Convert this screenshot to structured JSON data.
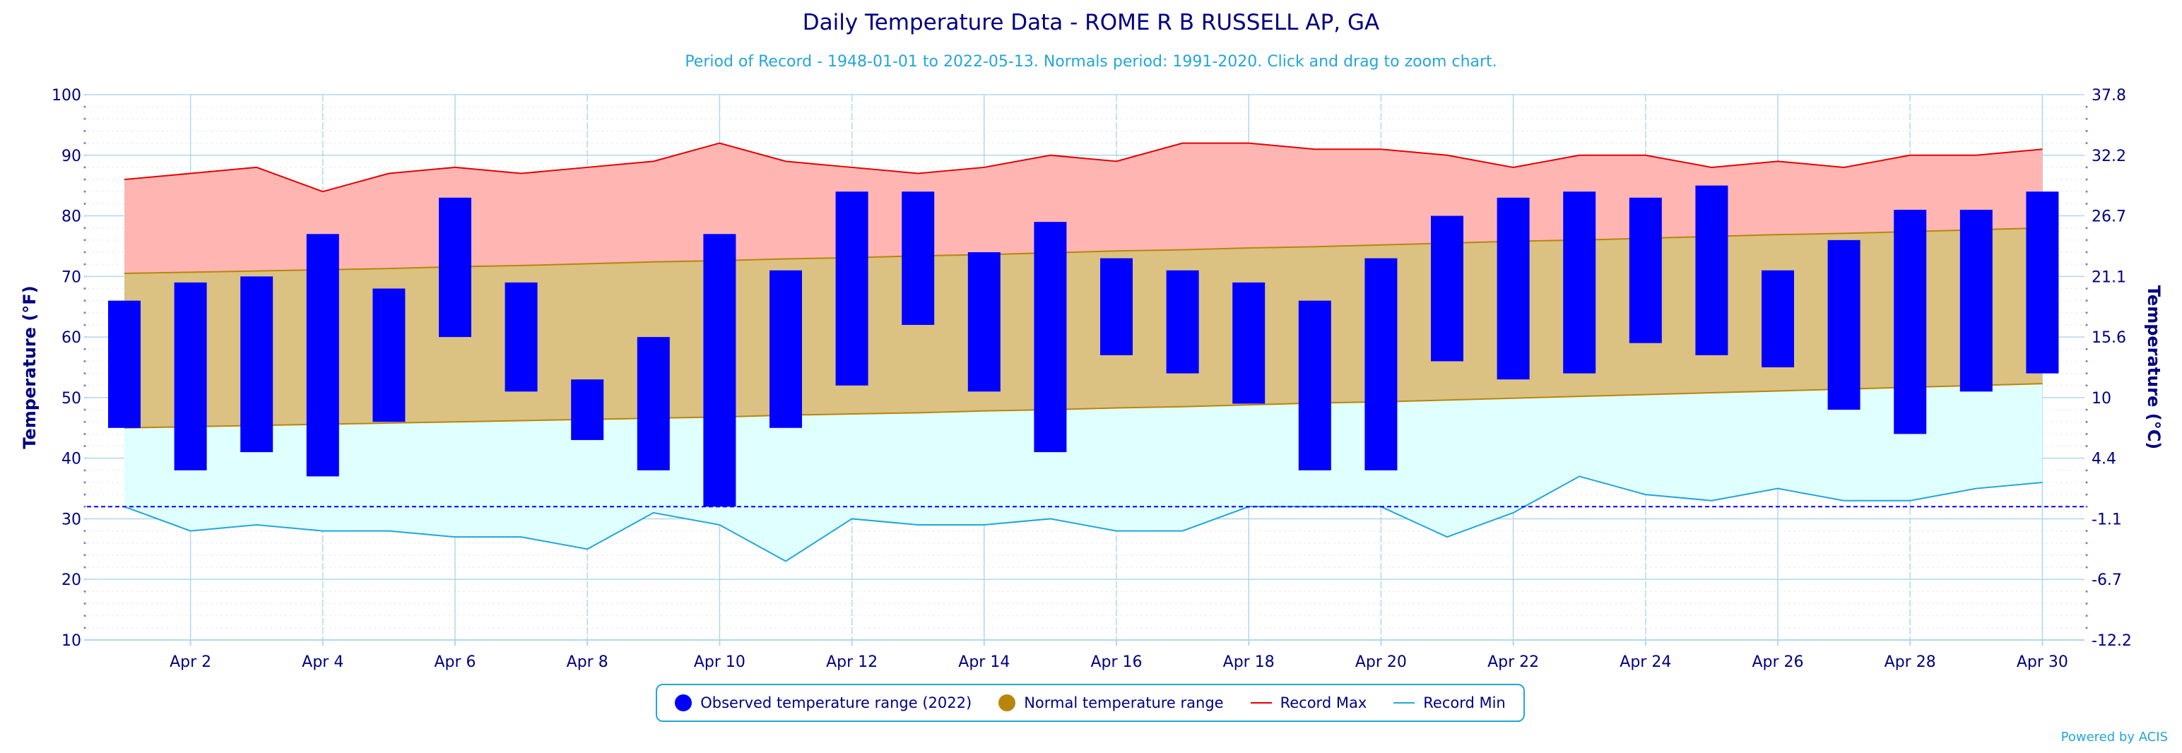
{
  "chart_data": {
    "type": "bar",
    "title": "Daily Temperature Data - ROME R B RUSSELL AP, GA",
    "subtitle": "Period of Record - 1948-01-01 to 2022-05-13. Normals period: 1991-2020. Click and drag to zoom chart.",
    "ylabel": "Temperature (°F)",
    "ylabel_right": "Temperature (°C)",
    "ylim": [
      10,
      100
    ],
    "y_ticks": [
      "100",
      "90",
      "80",
      "70",
      "60",
      "50",
      "40",
      "30",
      "20",
      "10"
    ],
    "y_ticks_right": [
      "37.8",
      "32.2",
      "26.7",
      "21.1",
      "15.6",
      "10",
      "4.4",
      "-1.1",
      "-6.7",
      "-12.2"
    ],
    "x_tick_labels": [
      "Apr 2",
      "Apr 4",
      "Apr 6",
      "Apr 8",
      "Apr 10",
      "Apr 12",
      "Apr 14",
      "Apr 16",
      "Apr 18",
      "Apr 20",
      "Apr 22",
      "Apr 24",
      "Apr 26",
      "Apr 28",
      "Apr 30"
    ],
    "days": [
      1,
      2,
      3,
      4,
      5,
      6,
      7,
      8,
      9,
      10,
      11,
      12,
      13,
      14,
      15,
      16,
      17,
      18,
      19,
      20,
      21,
      22,
      23,
      24,
      25,
      26,
      27,
      28,
      29,
      30
    ],
    "freezing_line": 32,
    "grid": true,
    "legend_position": "bottom",
    "series": [
      {
        "name": "Observed temperature range (2022)",
        "color": "#0000ff",
        "highs": [
          66,
          69,
          70,
          77,
          68,
          83,
          69,
          53,
          60,
          77,
          71,
          84,
          84,
          74,
          79,
          73,
          71,
          69,
          66,
          73,
          80,
          83,
          84,
          83,
          85,
          71,
          76,
          81,
          81,
          84
        ],
        "lows": [
          45,
          38,
          41,
          37,
          46,
          60,
          51,
          43,
          38,
          32,
          45,
          52,
          62,
          51,
          41,
          57,
          54,
          49,
          38,
          38,
          56,
          53,
          54,
          59,
          57,
          55,
          48,
          44,
          51,
          54
        ]
      },
      {
        "name": "Normal temperature range",
        "color": "#b8860b",
        "highs": [
          70.5,
          70.7,
          70.9,
          71.1,
          71.3,
          71.6,
          71.8,
          72.1,
          72.4,
          72.6,
          72.9,
          73.1,
          73.4,
          73.6,
          73.9,
          74.2,
          74.4,
          74.7,
          74.9,
          75.2,
          75.5,
          75.8,
          76.0,
          76.3,
          76.6,
          76.9,
          77.1,
          77.4,
          77.7,
          78.0
        ],
        "lows": [
          45.0,
          45.2,
          45.4,
          45.6,
          45.8,
          46.0,
          46.2,
          46.4,
          46.6,
          46.8,
          47.1,
          47.3,
          47.5,
          47.8,
          48.0,
          48.3,
          48.5,
          48.8,
          49.1,
          49.3,
          49.6,
          49.9,
          50.2,
          50.5,
          50.8,
          51.1,
          51.4,
          51.7,
          52.0,
          52.3
        ]
      },
      {
        "name": "Record Max",
        "color": "#e60000",
        "values": [
          86,
          87,
          88,
          84,
          87,
          88,
          87,
          88,
          89,
          92,
          89,
          88,
          87,
          88,
          90,
          89,
          92,
          92,
          91,
          91,
          90,
          88,
          90,
          90,
          88,
          89,
          88,
          90,
          90,
          91
        ]
      },
      {
        "name": "Record Min",
        "color": "#23a6d8",
        "values": [
          32,
          28,
          29,
          28,
          28,
          27,
          27,
          25,
          31,
          29,
          23,
          30,
          29,
          29,
          30,
          28,
          28,
          32,
          32,
          32,
          27,
          31,
          37,
          34,
          33,
          35,
          33,
          33,
          35,
          36
        ]
      }
    ]
  },
  "credits": "Powered by ACIS",
  "colors": {
    "record_band": "#ffb6b3",
    "normal_band": "#dbc282",
    "cold_band": "#e0ffff",
    "grid": "#b0d8ea",
    "axis_text": "#000080",
    "freeze": "#0000ff"
  }
}
